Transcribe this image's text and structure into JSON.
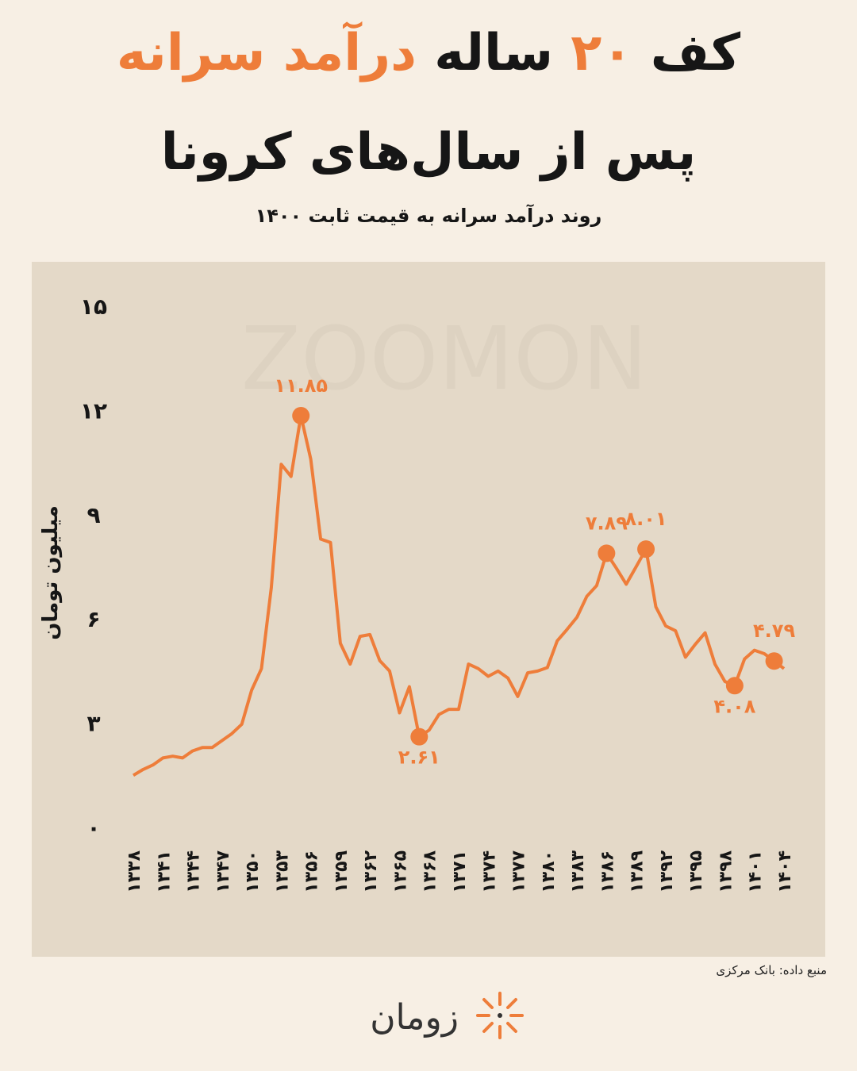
{
  "chart_data": {
    "type": "line",
    "title_parts": [
      {
        "text": "کف",
        "color": "#161616"
      },
      {
        "text": "۲۰",
        "color": "#ee7d3a"
      },
      {
        "text": "ساله",
        "color": "#161616"
      },
      {
        "text": "درآمد سرانه",
        "color": "#ee7d3a"
      }
    ],
    "title_line2": "پس از سال‌های کرونا",
    "subtitle": "روند درآمد سرانه به قیمت ثابت ۱۴۰۰",
    "y_label": "میلیون تومان",
    "watermark": "ZOOMON",
    "source": "منبع داده: بانک مرکزی",
    "brand": "زومان",
    "color": "#ee7d3a",
    "x": [
      1338,
      1339,
      1340,
      1341,
      1342,
      1343,
      1344,
      1345,
      1346,
      1347,
      1348,
      1349,
      1350,
      1351,
      1352,
      1353,
      1354,
      1355,
      1356,
      1357,
      1358,
      1359,
      1360,
      1361,
      1362,
      1363,
      1364,
      1365,
      1366,
      1367,
      1368,
      1369,
      1370,
      1371,
      1372,
      1373,
      1374,
      1375,
      1376,
      1377,
      1378,
      1379,
      1380,
      1381,
      1382,
      1383,
      1384,
      1385,
      1386,
      1387,
      1388,
      1389,
      1390,
      1391,
      1392,
      1393,
      1394,
      1395,
      1396,
      1397,
      1398,
      1399,
      1400,
      1401,
      1402,
      1403,
      1404
    ],
    "values": [
      1.5,
      1.67,
      1.8,
      2.0,
      2.05,
      2.0,
      2.2,
      2.3,
      2.3,
      2.5,
      2.7,
      2.97,
      3.95,
      4.57,
      6.9,
      10.45,
      10.1,
      11.85,
      10.6,
      8.3,
      8.2,
      5.3,
      4.7,
      5.5,
      5.55,
      4.8,
      4.5,
      3.3,
      4.05,
      2.61,
      2.8,
      3.25,
      3.4,
      3.4,
      4.7,
      4.57,
      4.35,
      4.5,
      4.3,
      3.77,
      4.45,
      4.5,
      4.6,
      5.37,
      5.7,
      6.05,
      6.65,
      6.96,
      7.89,
      7.46,
      7.0,
      7.5,
      8.01,
      6.35,
      5.8,
      5.66,
      4.9,
      5.27,
      5.6,
      4.7,
      4.2,
      4.08,
      4.85,
      5.1,
      5.0,
      4.79,
      4.57
    ],
    "value_labels": [
      null,
      null,
      null,
      null,
      null,
      null,
      null,
      null,
      null,
      null,
      null,
      null,
      null,
      null,
      null,
      null,
      null,
      "۱۱.۸۵",
      null,
      null,
      null,
      null,
      null,
      null,
      null,
      null,
      null,
      null,
      null,
      "۲.۶۱",
      null,
      null,
      null,
      null,
      null,
      null,
      null,
      null,
      null,
      null,
      null,
      null,
      null,
      null,
      null,
      null,
      null,
      null,
      "۷.۸۹",
      null,
      null,
      null,
      "۸.۰۱",
      null,
      null,
      null,
      null,
      null,
      null,
      null,
      null,
      "۴.۰۸",
      null,
      null,
      null,
      "۴.۷۹",
      null
    ],
    "xlim": [
      1338,
      1404
    ],
    "xticks": [
      {
        "value": 1338,
        "label": "۱۳۳۸"
      },
      {
        "value": 1341,
        "label": "۱۳۴۱"
      },
      {
        "value": 1344,
        "label": "۱۳۴۴"
      },
      {
        "value": 1347,
        "label": "۱۳۴۷"
      },
      {
        "value": 1350,
        "label": "۱۳۵۰"
      },
      {
        "value": 1353,
        "label": "۱۳۵۳"
      },
      {
        "value": 1356,
        "label": "۱۳۵۶"
      },
      {
        "value": 1359,
        "label": "۱۳۵۹"
      },
      {
        "value": 1362,
        "label": "۱۳۶۲"
      },
      {
        "value": 1365,
        "label": "۱۳۶۵"
      },
      {
        "value": 1368,
        "label": "۱۳۶۸"
      },
      {
        "value": 1371,
        "label": "۱۳۷۱"
      },
      {
        "value": 1374,
        "label": "۱۳۷۴"
      },
      {
        "value": 1377,
        "label": "۱۳۷۷"
      },
      {
        "value": 1380,
        "label": "۱۳۸۰"
      },
      {
        "value": 1383,
        "label": "۱۳۸۳"
      },
      {
        "value": 1386,
        "label": "۱۳۸۶"
      },
      {
        "value": 1389,
        "label": "۱۳۸۹"
      },
      {
        "value": 1392,
        "label": "۱۳۹۲"
      },
      {
        "value": 1395,
        "label": "۱۳۹۵"
      },
      {
        "value": 1398,
        "label": "۱۳۹۸"
      },
      {
        "value": 1401,
        "label": "۱۴۰۱"
      },
      {
        "value": 1404,
        "label": "۱۴۰۴"
      }
    ],
    "ylim": [
      0,
      15
    ],
    "yticks": [
      {
        "value": 0,
        "label": "۰"
      },
      {
        "value": 3,
        "label": "۳"
      },
      {
        "value": 6,
        "label": "۶"
      },
      {
        "value": 9,
        "label": "۹"
      },
      {
        "value": 12,
        "label": "۱۲"
      },
      {
        "value": 15,
        "label": "۱۵"
      }
    ]
  }
}
